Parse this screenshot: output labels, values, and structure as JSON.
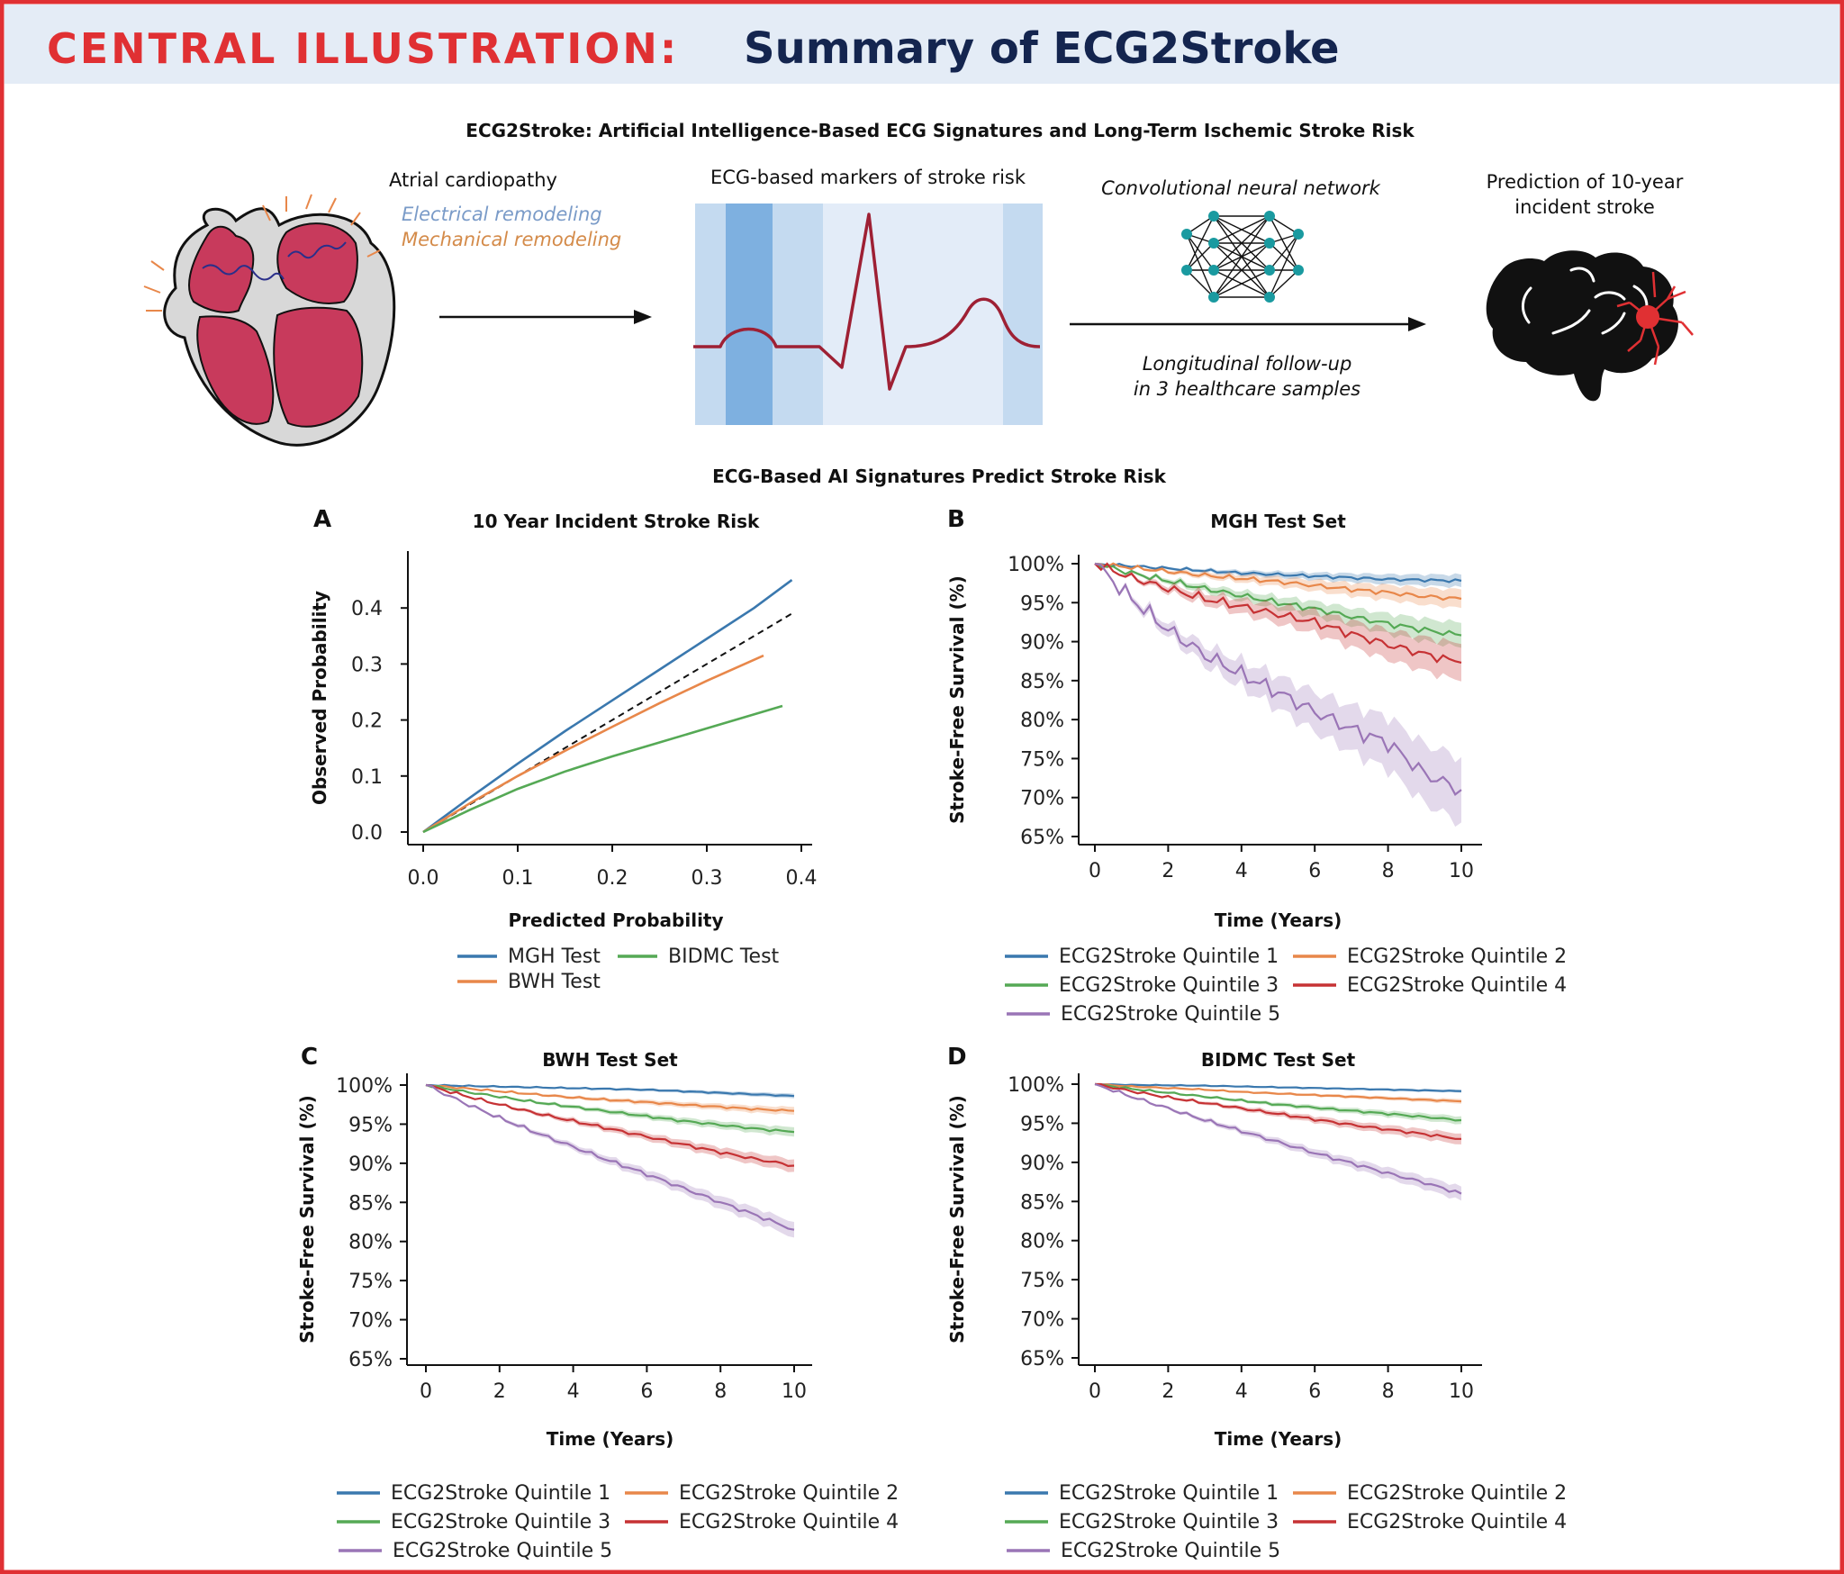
{
  "header": {
    "label": "CENTRAL ILLUSTRATION:",
    "title": "Summary of ECG2Stroke"
  },
  "overview": {
    "title": "ECG2Stroke: Artificial Intelligence-Based ECG Signatures and Long-Term Ischemic Stroke Risk",
    "heart_caption": "Atrial cardiopathy",
    "electrical": "Electrical remodeling",
    "mechanical": "Mechanical remodeling",
    "ecg_caption": "ECG-based markers of stroke risk",
    "cnn_caption": "Convolutional neural network",
    "followup_line1": "Longitudinal follow-up",
    "followup_line2": "in 3 healthcare samples",
    "prediction_line1": "Prediction of 10-year",
    "prediction_line2": "incident stroke"
  },
  "section_title": "ECG-Based AI Signatures Predict Stroke Risk",
  "colors": {
    "accent_red": "#E03033",
    "navy": "#14254F",
    "header_bg": "#E4ECF6",
    "q1": "#3A78AE",
    "q2": "#E8874A",
    "q3": "#55A955",
    "q4": "#C63234",
    "q5": "#9A75B6",
    "heart": "#C83A5C",
    "ecg_line": "#9E2034"
  },
  "chart_data": [
    {
      "panel": "A",
      "type": "line",
      "title": "10 Year Incident Stroke Risk",
      "xlabel": "Predicted Probability",
      "ylabel": "Observed Probability",
      "xlim": [
        0,
        0.4
      ],
      "ylim": [
        0,
        0.5
      ],
      "xticks": [
        "0.0",
        "0.1",
        "0.2",
        "0.3",
        "0.4"
      ],
      "yticks": [
        "0.0",
        "0.1",
        "0.2",
        "0.3",
        "0.4"
      ],
      "reference_line": {
        "style": "dashed",
        "x": [
          0,
          0.39
        ],
        "y": [
          0,
          0.39
        ]
      },
      "legend": [
        "MGH Test",
        "BIDMC Test",
        "BWH Test"
      ],
      "series": [
        {
          "name": "MGH Test",
          "color_key": "q1",
          "x": [
            0,
            0.05,
            0.1,
            0.15,
            0.2,
            0.25,
            0.3,
            0.35,
            0.39
          ],
          "y": [
            0,
            0.062,
            0.122,
            0.18,
            0.235,
            0.29,
            0.345,
            0.4,
            0.45
          ]
        },
        {
          "name": "BWH Test",
          "color_key": "q2",
          "x": [
            0,
            0.05,
            0.1,
            0.15,
            0.2,
            0.25,
            0.3,
            0.36
          ],
          "y": [
            0,
            0.052,
            0.1,
            0.145,
            0.188,
            0.23,
            0.27,
            0.315
          ]
        },
        {
          "name": "BIDMC Test",
          "color_key": "q3",
          "x": [
            0,
            0.05,
            0.1,
            0.15,
            0.2,
            0.25,
            0.3,
            0.38
          ],
          "y": [
            0,
            0.04,
            0.077,
            0.108,
            0.135,
            0.16,
            0.185,
            0.225
          ]
        }
      ]
    },
    {
      "panel": "B",
      "type": "line",
      "title": "MGH Test Set",
      "xlabel": "Time (Years)",
      "ylabel": "Stroke-Free Survival (%)",
      "xlim": [
        0,
        10
      ],
      "ylim": [
        65,
        100
      ],
      "xticks": [
        "0",
        "2",
        "4",
        "6",
        "8",
        "10"
      ],
      "yticks": [
        "100%",
        "95%",
        "90%",
        "85%",
        "80%",
        "75%",
        "70%",
        "65%"
      ],
      "confidence_bands": true,
      "x": [
        0,
        1,
        2,
        3,
        4,
        5,
        6,
        7,
        8,
        9,
        10
      ],
      "series": [
        {
          "name": "ECG2Stroke Quintile 1",
          "color_key": "q1",
          "values": [
            100,
            99.7,
            99.4,
            99.1,
            98.8,
            98.6,
            98.4,
            98.2,
            98.0,
            97.9,
            97.8
          ],
          "band": 0.8
        },
        {
          "name": "ECG2Stroke Quintile 2",
          "color_key": "q2",
          "values": [
            100,
            99.5,
            99.0,
            98.5,
            98.1,
            97.7,
            97.2,
            96.7,
            96.3,
            95.8,
            95.5
          ],
          "band": 1.2
        },
        {
          "name": "ECG2Stroke Quintile 3",
          "color_key": "q3",
          "values": [
            100,
            98.8,
            97.8,
            96.8,
            95.9,
            95.0,
            94.2,
            93.2,
            92.3,
            91.5,
            90.8
          ],
          "band": 1.6
        },
        {
          "name": "ECG2Stroke Quintile 4",
          "color_key": "q4",
          "values": [
            100,
            98.2,
            96.8,
            95.5,
            94.5,
            93.5,
            92.5,
            91.0,
            89.6,
            88.4,
            87.3
          ],
          "band": 2.4
        },
        {
          "name": "ECG2Stroke Quintile 5",
          "color_key": "q5",
          "values": [
            100,
            95.5,
            91.5,
            88.3,
            85.8,
            83.5,
            81.0,
            78.8,
            77.0,
            73.0,
            71.0
          ],
          "band": 4.2
        }
      ]
    },
    {
      "panel": "C",
      "type": "line",
      "title": "BWH Test Set",
      "xlabel": "Time (Years)",
      "ylabel": "Stroke-Free Survival (%)",
      "xlim": [
        0,
        10
      ],
      "ylim": [
        65,
        100
      ],
      "xticks": [
        "0",
        "2",
        "4",
        "6",
        "8",
        "10"
      ],
      "yticks": [
        "100%",
        "95%",
        "90%",
        "85%",
        "80%",
        "75%",
        "70%",
        "65%"
      ],
      "confidence_bands": true,
      "x": [
        0,
        1,
        2,
        3,
        4,
        5,
        6,
        7,
        8,
        9,
        10
      ],
      "series": [
        {
          "name": "ECG2Stroke Quintile 1",
          "color_key": "q1",
          "values": [
            100,
            99.9,
            99.8,
            99.7,
            99.6,
            99.5,
            99.4,
            99.2,
            99.0,
            98.8,
            98.6
          ],
          "band": 0.3
        },
        {
          "name": "ECG2Stroke Quintile 2",
          "color_key": "q2",
          "values": [
            100,
            99.6,
            99.2,
            98.8,
            98.4,
            98.1,
            97.8,
            97.5,
            97.2,
            96.9,
            96.7
          ],
          "band": 0.5
        },
        {
          "name": "ECG2Stroke Quintile 3",
          "color_key": "q3",
          "values": [
            100,
            99.2,
            98.5,
            97.8,
            97.2,
            96.6,
            96.0,
            95.4,
            94.9,
            94.4,
            94.0
          ],
          "band": 0.6
        },
        {
          "name": "ECG2Stroke Quintile 4",
          "color_key": "q4",
          "values": [
            100,
            98.7,
            97.5,
            96.4,
            95.4,
            94.4,
            93.4,
            92.4,
            91.4,
            90.5,
            89.7
          ],
          "band": 0.8
        },
        {
          "name": "ECG2Stroke Quintile 5",
          "color_key": "q5",
          "values": [
            100,
            97.8,
            95.8,
            93.9,
            92.1,
            90.3,
            88.6,
            86.8,
            85.0,
            83.3,
            81.5
          ],
          "band": 1.0
        }
      ]
    },
    {
      "panel": "D",
      "type": "line",
      "title": "BIDMC Test Set",
      "xlabel": "Time (Years)",
      "ylabel": "Stroke-Free Survival (%)",
      "xlim": [
        0,
        10
      ],
      "ylim": [
        65,
        100
      ],
      "xticks": [
        "0",
        "2",
        "4",
        "6",
        "8",
        "10"
      ],
      "yticks": [
        "100%",
        "95%",
        "90%",
        "85%",
        "80%",
        "75%",
        "70%",
        "65%"
      ],
      "confidence_bands": true,
      "x": [
        0,
        1,
        2,
        3,
        4,
        5,
        6,
        7,
        8,
        9,
        10
      ],
      "series": [
        {
          "name": "ECG2Stroke Quintile 1",
          "color_key": "q1",
          "values": [
            100,
            99.9,
            99.85,
            99.8,
            99.7,
            99.6,
            99.5,
            99.4,
            99.3,
            99.2,
            99.1
          ],
          "band": 0.2
        },
        {
          "name": "ECG2Stroke Quintile 2",
          "color_key": "q2",
          "values": [
            100,
            99.7,
            99.5,
            99.3,
            99.0,
            98.8,
            98.6,
            98.4,
            98.2,
            98.0,
            97.8
          ],
          "band": 0.3
        },
        {
          "name": "ECG2Stroke Quintile 3",
          "color_key": "q3",
          "values": [
            100,
            99.4,
            98.9,
            98.4,
            97.9,
            97.4,
            97.0,
            96.6,
            96.2,
            95.8,
            95.4
          ],
          "band": 0.5
        },
        {
          "name": "ECG2Stroke Quintile 4",
          "color_key": "q4",
          "values": [
            100,
            99.1,
            98.3,
            97.6,
            96.9,
            96.2,
            95.5,
            94.8,
            94.2,
            93.6,
            93.0
          ],
          "band": 0.7
        },
        {
          "name": "ECG2Stroke Quintile 5",
          "color_key": "q5",
          "values": [
            100,
            98.4,
            96.9,
            95.4,
            94.0,
            92.6,
            91.2,
            89.9,
            88.6,
            87.4,
            86.0
          ],
          "band": 0.9
        }
      ]
    }
  ]
}
